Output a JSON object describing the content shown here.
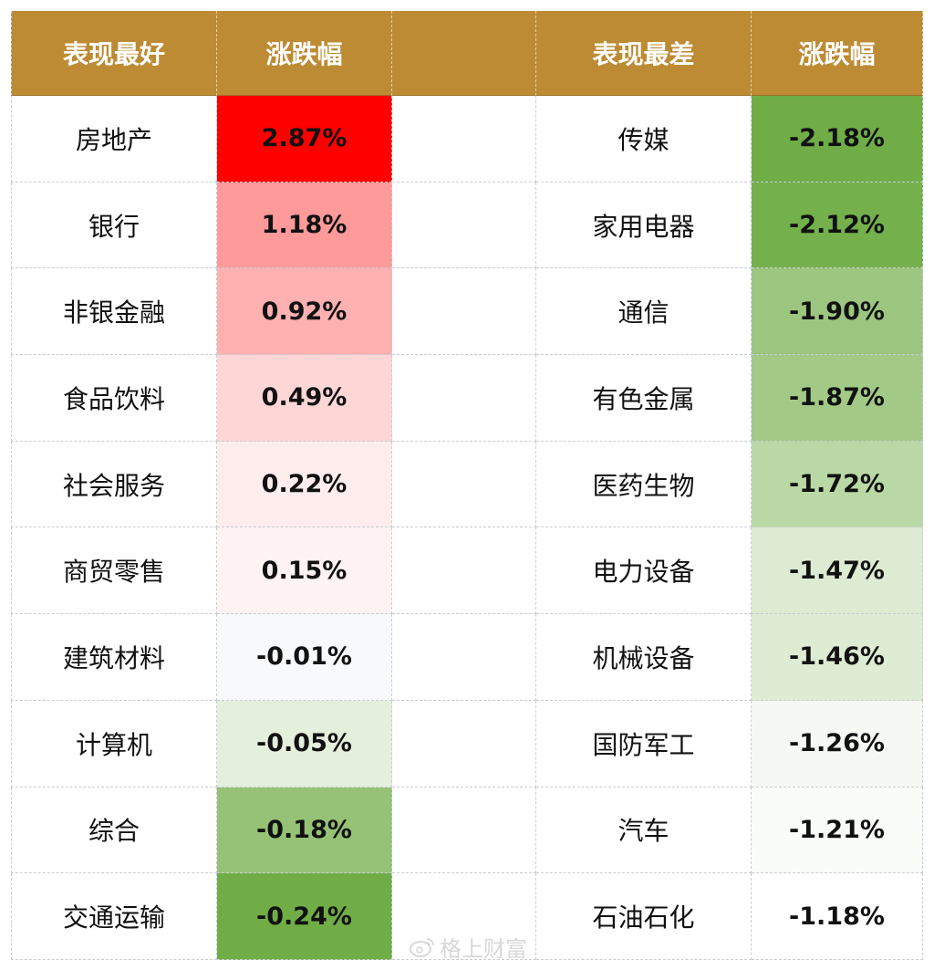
{
  "header": {
    "best_label": "表现最好",
    "change_label_left": "涨跌幅",
    "worst_label": "表现最差",
    "change_label_right": "涨跌幅"
  },
  "rows": [
    {
      "best_sector": "房地产",
      "best_change": "2.87%",
      "best_color": "#ff0000",
      "worst_sector": "传媒",
      "worst_change": "-2.18%",
      "worst_color": "#70ad47"
    },
    {
      "best_sector": "银行",
      "best_change": "1.18%",
      "best_color": "#ff9a9a",
      "worst_sector": "家用电器",
      "worst_change": "-2.12%",
      "worst_color": "#74b04c"
    },
    {
      "best_sector": "非银金融",
      "best_change": "0.92%",
      "best_color": "#ffb0b0",
      "worst_sector": "通信",
      "worst_change": "-1.90%",
      "worst_color": "#9cc67f"
    },
    {
      "best_sector": "食品饮料",
      "best_change": "0.49%",
      "best_color": "#ffd6d6",
      "worst_sector": "有色金属",
      "worst_change": "-1.87%",
      "worst_color": "#a2ca86"
    },
    {
      "best_sector": "社会服务",
      "best_change": "0.22%",
      "best_color": "#ffeded",
      "worst_sector": "医药生物",
      "worst_change": "-1.72%",
      "worst_color": "#bad8a5"
    },
    {
      "best_sector": "商贸零售",
      "best_change": "0.15%",
      "best_color": "#fff3f3",
      "worst_sector": "电力设备",
      "worst_change": "-1.47%",
      "worst_color": "#dcebd2"
    },
    {
      "best_sector": "建筑材料",
      "best_change": "-0.01%",
      "best_color": "#f8f9fb",
      "worst_sector": "机械设备",
      "worst_change": "-1.46%",
      "worst_color": "#ddecd3"
    },
    {
      "best_sector": "计算机",
      "best_change": "-0.05%",
      "best_color": "#e4efdc",
      "worst_sector": "国防军工",
      "worst_change": "-1.26%",
      "worst_color": "#f6f9f3"
    },
    {
      "best_sector": "综合",
      "best_change": "-0.18%",
      "best_color": "#95c276",
      "worst_sector": "汽车",
      "worst_change": "-1.21%",
      "worst_color": "#fafcf9"
    },
    {
      "best_sector": "交通运输",
      "best_change": "-0.24%",
      "best_color": "#70ad47",
      "worst_sector": "石油石化",
      "worst_change": "-1.18%",
      "worst_color": "#ffffff"
    }
  ],
  "watermark": {
    "text": "格上财富",
    "icon": "weibo-icon"
  }
}
